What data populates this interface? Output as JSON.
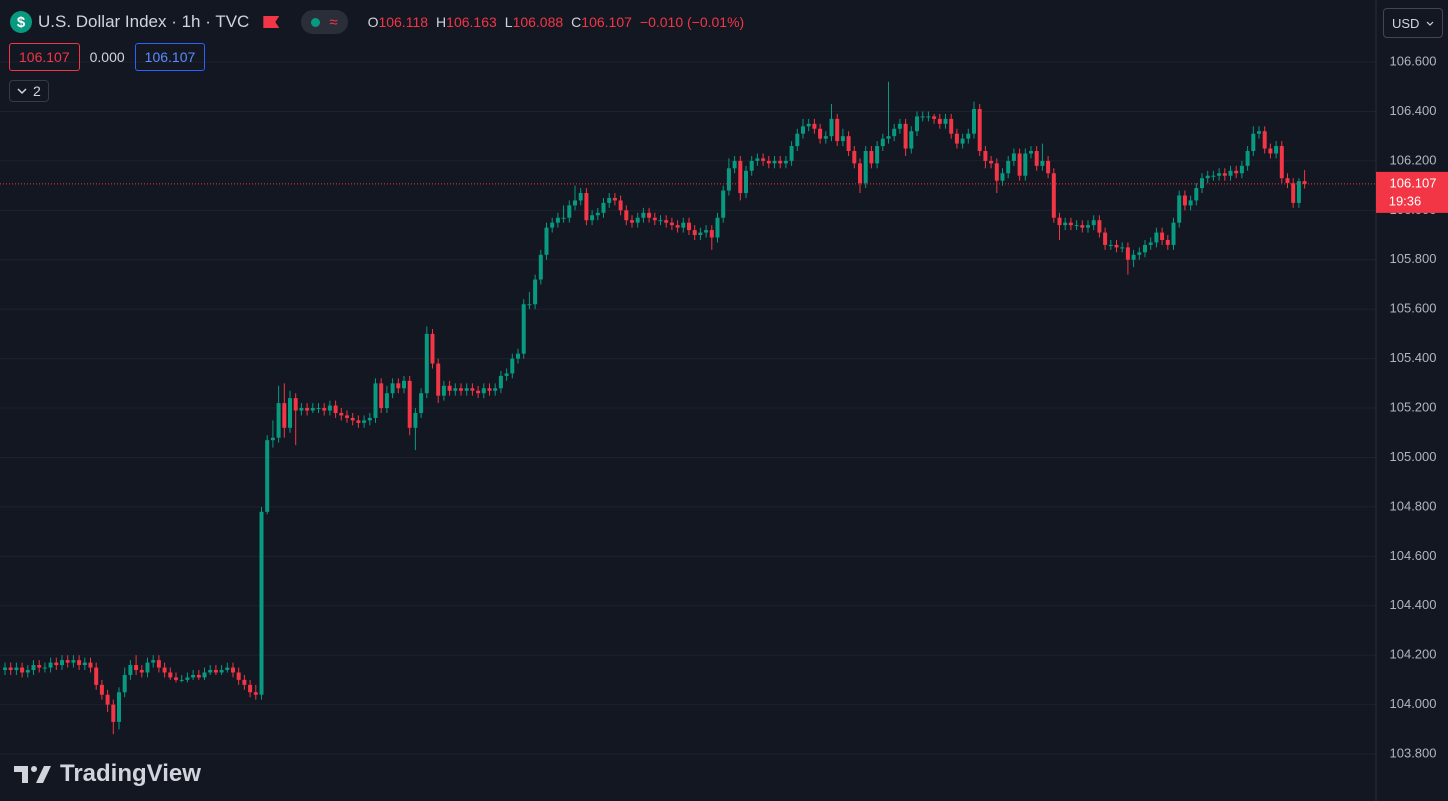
{
  "chart_data": {
    "type": "candlestick",
    "title": "U.S. Dollar Index · 1h · TVC",
    "symbol_icon": "$",
    "source_icon": "≈",
    "legend": {
      "open_label": "O",
      "high_label": "H",
      "low_label": "L",
      "close_label": "C",
      "change": "−0.010 (−0.01%)"
    },
    "quote": {
      "bid": "106.107",
      "spread": "0.000",
      "ask": "106.107"
    },
    "indicators_count": "2",
    "currency": "USD",
    "countdown": "19:36",
    "logo": "TradingView",
    "up_color": "#089981",
    "down_color": "#f23645",
    "ylim": [
      103.61,
      106.851
    ],
    "yticks": [
      {
        "value": 106.6,
        "label": "106.600"
      },
      {
        "value": 106.4,
        "label": "106.400"
      },
      {
        "value": 106.2,
        "label": "106.200"
      },
      {
        "value": 106.0,
        "label": "106.000"
      },
      {
        "value": 105.8,
        "label": "105.800"
      },
      {
        "value": 105.6,
        "label": "105.600"
      },
      {
        "value": 105.4,
        "label": "105.400"
      },
      {
        "value": 105.2,
        "label": "105.200"
      },
      {
        "value": 105.0,
        "label": "105.000"
      },
      {
        "value": 104.8,
        "label": "104.800"
      },
      {
        "value": 104.6,
        "label": "104.600"
      },
      {
        "value": 104.4,
        "label": "104.400"
      },
      {
        "value": 104.2,
        "label": "104.200"
      },
      {
        "value": 104.0,
        "label": "104.000"
      },
      {
        "value": 103.8,
        "label": "103.800"
      }
    ],
    "grid": true,
    "open": [
      104.14,
      104.15,
      104.14,
      104.15,
      104.13,
      104.14,
      104.16,
      104.15,
      104.15,
      104.17,
      104.16,
      104.18,
      104.17,
      104.18,
      104.16,
      104.17,
      104.15,
      104.08,
      104.04,
      104.0,
      103.93,
      104.05,
      104.12,
      104.16,
      104.14,
      104.13,
      104.17,
      104.18,
      104.15,
      104.13,
      104.11,
      104.1,
      104.1,
      104.11,
      104.12,
      104.11,
      104.13,
      104.14,
      104.13,
      104.14,
      104.15,
      104.13,
      104.1,
      104.08,
      104.05,
      104.04,
      104.78,
      105.07,
      105.08,
      105.22,
      105.12,
      105.24,
      105.19,
      105.2,
      105.19,
      105.2,
      105.2,
      105.19,
      105.21,
      105.18,
      105.17,
      105.16,
      105.15,
      105.14,
      105.15,
      105.16,
      105.3,
      105.2,
      105.26,
      105.3,
      105.28,
      105.31,
      105.12,
      105.18,
      105.26,
      105.5,
      105.38,
      105.25,
      105.29,
      105.27,
      105.28,
      105.27,
      105.28,
      105.27,
      105.26,
      105.28,
      105.27,
      105.28,
      105.33,
      105.34,
      105.4,
      105.42,
      105.62,
      105.62,
      105.72,
      105.82,
      105.93,
      105.95,
      105.97,
      105.97,
      106.02,
      106.04,
      106.07,
      105.96,
      105.98,
      105.99,
      106.03,
      106.05,
      106.04,
      106.0,
      105.96,
      105.95,
      105.97,
      105.99,
      105.97,
      105.96,
      105.96,
      105.95,
      105.94,
      105.93,
      105.95,
      105.92,
      105.9,
      105.91,
      105.92,
      105.89,
      105.97,
      106.08,
      106.17,
      106.2,
      106.07,
      106.16,
      106.2,
      106.21,
      106.2,
      106.19,
      106.2,
      106.19,
      106.2,
      106.26,
      106.31,
      106.34,
      106.35,
      106.33,
      106.29,
      106.3,
      106.37,
      106.28,
      106.3,
      106.24,
      106.19,
      106.11,
      106.24,
      106.19,
      106.26,
      106.29,
      106.3,
      106.33,
      106.35,
      106.25,
      106.32,
      106.38,
      106.38,
      106.38,
      106.37,
      106.35,
      106.37,
      106.31,
      106.27,
      106.29,
      106.31,
      106.41,
      106.24,
      106.2,
      106.19,
      106.12,
      106.15,
      106.2,
      106.23,
      106.14,
      106.23,
      106.24,
      106.18,
      106.2,
      106.15,
      105.97,
      105.94,
      105.95,
      105.94,
      105.94,
      105.93,
      105.94,
      105.96,
      105.91,
      105.86,
      105.86,
      105.85,
      105.85,
      105.8,
      105.82,
      105.83,
      105.86,
      105.87,
      105.91,
      105.88,
      105.86,
      105.95,
      106.06,
      106.02,
      106.04,
      106.09,
      106.13,
      106.14,
      106.14,
      106.15,
      106.14,
      106.16,
      106.15,
      106.18,
      106.24,
      106.31,
      106.32,
      106.25,
      106.23,
      106.26,
      106.13,
      106.11,
      106.03,
      106.118
    ],
    "high": [
      104.17,
      104.17,
      104.17,
      104.17,
      104.16,
      104.18,
      104.18,
      104.17,
      104.19,
      104.19,
      104.2,
      104.2,
      104.2,
      104.2,
      104.19,
      104.19,
      104.17,
      104.1,
      104.06,
      104.02,
      104.07,
      104.15,
      104.18,
      104.2,
      104.16,
      104.19,
      104.2,
      104.2,
      104.17,
      104.15,
      104.13,
      104.12,
      104.13,
      104.14,
      104.14,
      104.15,
      104.16,
      104.16,
      104.16,
      104.17,
      104.17,
      104.15,
      104.12,
      104.1,
      104.08,
      104.8,
      105.09,
      105.15,
      105.29,
      105.3,
      105.27,
      105.26,
      105.22,
      105.22,
      105.22,
      105.22,
      105.22,
      105.23,
      105.23,
      105.2,
      105.19,
      105.18,
      105.17,
      105.17,
      105.18,
      105.32,
      105.32,
      105.29,
      105.32,
      105.32,
      105.33,
      105.33,
      105.2,
      105.28,
      105.53,
      105.52,
      105.4,
      105.31,
      105.31,
      105.3,
      105.3,
      105.3,
      105.3,
      105.29,
      105.3,
      105.3,
      105.3,
      105.35,
      105.36,
      105.42,
      105.44,
      105.64,
      105.67,
      105.74,
      105.84,
      105.95,
      105.97,
      105.99,
      106.02,
      106.04,
      106.1,
      106.09,
      106.09,
      106.0,
      106.01,
      106.05,
      106.07,
      106.07,
      106.06,
      106.02,
      105.98,
      105.99,
      106.01,
      106.01,
      105.99,
      105.98,
      105.98,
      105.97,
      105.96,
      105.97,
      105.97,
      105.94,
      105.93,
      105.94,
      105.94,
      105.99,
      106.1,
      106.21,
      106.22,
      106.22,
      106.18,
      106.22,
      106.23,
      106.23,
      106.22,
      106.22,
      106.22,
      106.22,
      106.28,
      106.33,
      106.37,
      106.37,
      106.37,
      106.35,
      106.32,
      106.43,
      106.39,
      106.33,
      106.32,
      106.26,
      106.21,
      106.26,
      106.26,
      106.28,
      106.31,
      106.52,
      106.35,
      106.37,
      106.37,
      106.34,
      106.4,
      106.4,
      106.4,
      106.39,
      106.39,
      106.39,
      106.39,
      106.33,
      106.31,
      106.33,
      106.44,
      106.43,
      106.26,
      106.22,
      106.21,
      106.17,
      106.22,
      106.25,
      106.25,
      106.25,
      106.26,
      106.26,
      106.27,
      106.22,
      106.17,
      105.99,
      105.97,
      105.97,
      105.96,
      105.96,
      105.96,
      105.98,
      105.98,
      105.93,
      105.88,
      105.88,
      105.87,
      105.87,
      105.84,
      105.85,
      105.88,
      105.89,
      105.93,
      105.93,
      105.9,
      105.97,
      106.08,
      106.08,
      106.06,
      106.11,
      106.15,
      106.16,
      106.16,
      106.17,
      106.17,
      106.18,
      106.18,
      106.2,
      106.26,
      106.34,
      106.34,
      106.34,
      106.27,
      106.28,
      106.28,
      106.15,
      106.13,
      106.13,
      106.163
    ],
    "low": [
      104.12,
      104.12,
      104.12,
      104.11,
      104.11,
      104.12,
      104.13,
      104.13,
      104.13,
      104.14,
      104.14,
      104.15,
      104.15,
      104.14,
      104.14,
      104.13,
      104.06,
      104.02,
      103.97,
      103.88,
      103.9,
      104.03,
      104.1,
      104.12,
      104.11,
      104.11,
      104.15,
      104.13,
      104.11,
      104.1,
      104.09,
      104.09,
      104.09,
      104.1,
      104.1,
      104.1,
      104.12,
      104.12,
      104.12,
      104.13,
      104.11,
      104.08,
      104.06,
      104.03,
      104.02,
      104.02,
      104.77,
      105.04,
      105.06,
      105.08,
      105.1,
      105.05,
      105.17,
      105.17,
      105.18,
      105.18,
      105.17,
      105.17,
      105.16,
      105.15,
      105.14,
      105.13,
      105.12,
      105.12,
      105.13,
      105.14,
      105.18,
      105.18,
      105.24,
      105.26,
      105.26,
      105.09,
      105.03,
      105.16,
      105.24,
      105.36,
      105.22,
      105.23,
      105.25,
      105.25,
      105.25,
      105.25,
      105.25,
      105.24,
      105.24,
      105.25,
      105.25,
      105.26,
      105.31,
      105.32,
      105.38,
      105.4,
      105.6,
      105.6,
      105.7,
      105.8,
      105.91,
      105.93,
      105.95,
      105.95,
      106.0,
      106.02,
      105.94,
      105.94,
      105.96,
      105.97,
      106.01,
      106.02,
      105.98,
      105.94,
      105.93,
      105.93,
      105.95,
      105.95,
      105.94,
      105.94,
      105.93,
      105.92,
      105.91,
      105.91,
      105.9,
      105.88,
      105.88,
      105.89,
      105.84,
      105.87,
      105.95,
      106.06,
      106.15,
      106.04,
      106.05,
      106.14,
      106.18,
      106.18,
      106.17,
      106.17,
      106.17,
      106.17,
      106.18,
      106.24,
      106.29,
      106.32,
      106.31,
      106.27,
      106.27,
      106.28,
      106.26,
      106.26,
      106.22,
      106.17,
      106.07,
      106.09,
      106.17,
      106.17,
      106.24,
      106.27,
      106.28,
      106.31,
      106.22,
      106.23,
      106.3,
      106.36,
      106.36,
      106.35,
      106.33,
      106.33,
      106.29,
      106.25,
      106.25,
      106.27,
      106.29,
      106.22,
      106.17,
      106.17,
      106.07,
      106.1,
      106.13,
      106.18,
      106.12,
      106.12,
      106.21,
      106.16,
      106.16,
      106.13,
      105.95,
      105.88,
      105.92,
      105.92,
      105.92,
      105.91,
      105.91,
      105.92,
      105.89,
      105.84,
      105.84,
      105.83,
      105.83,
      105.74,
      105.77,
      105.8,
      105.81,
      105.84,
      105.85,
      105.86,
      105.84,
      105.84,
      105.93,
      106.0,
      106.0,
      106.02,
      106.07,
      106.11,
      106.12,
      106.12,
      106.12,
      106.12,
      106.13,
      106.13,
      106.16,
      106.22,
      106.29,
      106.23,
      106.21,
      106.21,
      106.11,
      106.09,
      106.01,
      106.01,
      106.088
    ],
    "close": [
      104.15,
      104.14,
      104.15,
      104.13,
      104.14,
      104.16,
      104.15,
      104.15,
      104.17,
      104.16,
      104.18,
      104.17,
      104.18,
      104.16,
      104.17,
      104.15,
      104.08,
      104.04,
      104.0,
      103.93,
      104.05,
      104.12,
      104.16,
      104.14,
      104.13,
      104.17,
      104.18,
      104.15,
      104.13,
      104.11,
      104.1,
      104.1,
      104.11,
      104.12,
      104.11,
      104.13,
      104.14,
      104.13,
      104.14,
      104.15,
      104.13,
      104.1,
      104.08,
      104.05,
      104.04,
      104.78,
      105.07,
      105.08,
      105.22,
      105.12,
      105.24,
      105.19,
      105.2,
      105.19,
      105.2,
      105.2,
      105.19,
      105.21,
      105.18,
      105.17,
      105.16,
      105.15,
      105.14,
      105.15,
      105.16,
      105.3,
      105.2,
      105.26,
      105.3,
      105.28,
      105.31,
      105.12,
      105.18,
      105.26,
      105.5,
      105.38,
      105.25,
      105.29,
      105.27,
      105.28,
      105.27,
      105.28,
      105.27,
      105.26,
      105.28,
      105.27,
      105.28,
      105.33,
      105.34,
      105.4,
      105.42,
      105.62,
      105.62,
      105.72,
      105.82,
      105.93,
      105.95,
      105.97,
      105.97,
      106.02,
      106.04,
      106.07,
      105.96,
      105.98,
      105.99,
      106.03,
      106.05,
      106.04,
      106.0,
      105.96,
      105.95,
      105.97,
      105.99,
      105.97,
      105.96,
      105.96,
      105.95,
      105.94,
      105.93,
      105.95,
      105.92,
      105.9,
      105.91,
      105.92,
      105.89,
      105.97,
      106.08,
      106.17,
      106.2,
      106.07,
      106.16,
      106.2,
      106.21,
      106.2,
      106.19,
      106.2,
      106.19,
      106.2,
      106.26,
      106.31,
      106.34,
      106.35,
      106.33,
      106.29,
      106.3,
      106.37,
      106.28,
      106.3,
      106.24,
      106.19,
      106.11,
      106.24,
      106.19,
      106.26,
      106.29,
      106.3,
      106.33,
      106.35,
      106.25,
      106.32,
      106.38,
      106.38,
      106.38,
      106.37,
      106.35,
      106.37,
      106.31,
      106.27,
      106.29,
      106.31,
      106.41,
      106.24,
      106.2,
      106.19,
      106.12,
      106.15,
      106.2,
      106.23,
      106.14,
      106.23,
      106.24,
      106.18,
      106.2,
      106.15,
      105.97,
      105.94,
      105.95,
      105.94,
      105.94,
      105.93,
      105.94,
      105.96,
      105.91,
      105.86,
      105.86,
      105.85,
      105.85,
      105.8,
      105.82,
      105.83,
      105.86,
      105.87,
      105.91,
      105.88,
      105.86,
      105.95,
      106.06,
      106.02,
      106.04,
      106.09,
      106.13,
      106.14,
      106.14,
      106.15,
      106.14,
      106.16,
      106.15,
      106.18,
      106.24,
      106.31,
      106.32,
      106.25,
      106.23,
      106.26,
      106.13,
      106.11,
      106.03,
      106.118,
      106.107
    ]
  }
}
